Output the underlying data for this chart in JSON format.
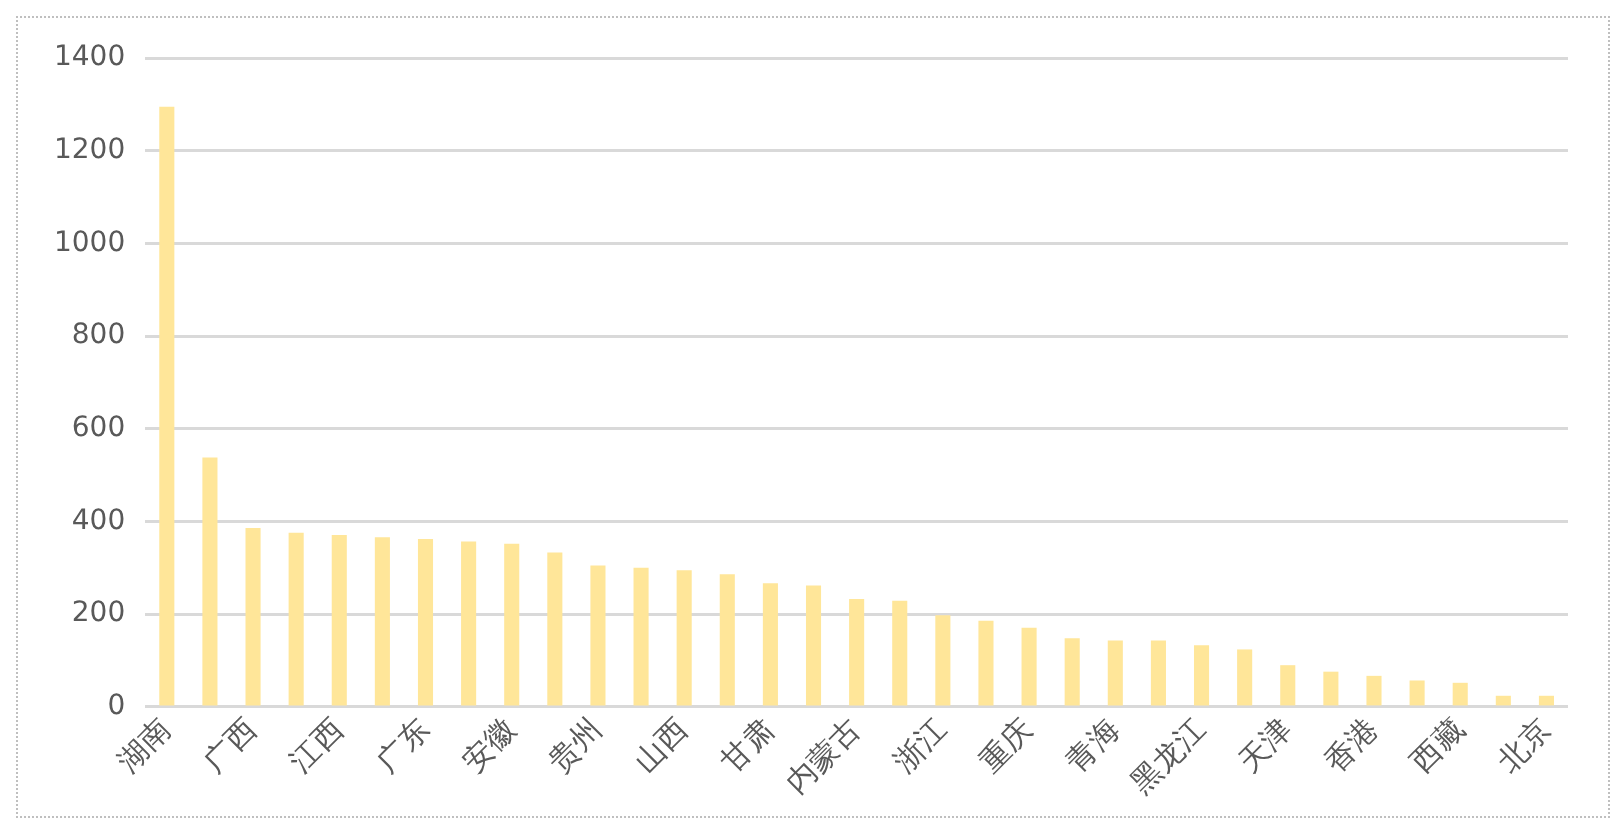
{
  "chart_data": {
    "type": "bar",
    "categories": [
      "湖南",
      null,
      "广西",
      null,
      "江西",
      null,
      "广东",
      null,
      "安徽",
      null,
      "贵州",
      null,
      "山西",
      null,
      "甘肃",
      null,
      "内蒙古",
      null,
      "浙江",
      null,
      "重庆",
      null,
      "青海",
      null,
      "黑龙江",
      null,
      "天津",
      null,
      "香港",
      null,
      "西藏",
      null,
      "北京"
    ],
    "values": [
      1295,
      538,
      386,
      376,
      371,
      366,
      362,
      357,
      352,
      333,
      305,
      300,
      295,
      286,
      267,
      262,
      233,
      229,
      198,
      186,
      171,
      148,
      143,
      143,
      133,
      124,
      90,
      76,
      67,
      57,
      52,
      24,
      24
    ],
    "color": "#ffe699",
    "ylim": [
      0,
      1400
    ],
    "yticks": [
      0,
      200,
      400,
      600,
      800,
      1000,
      1200,
      1400
    ],
    "grid": "y"
  }
}
